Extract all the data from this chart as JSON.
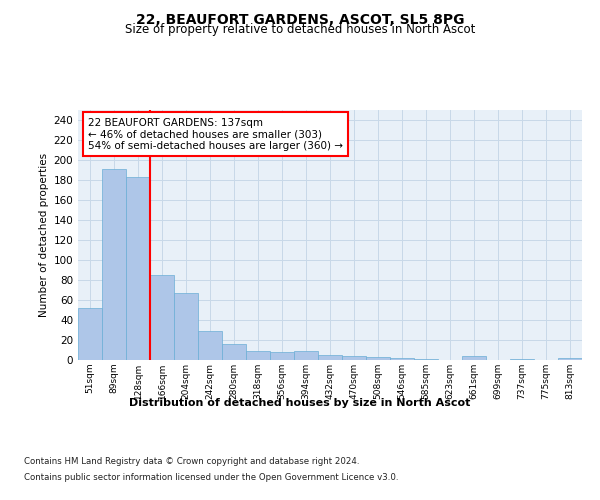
{
  "title": "22, BEAUFORT GARDENS, ASCOT, SL5 8PG",
  "subtitle": "Size of property relative to detached houses in North Ascot",
  "xlabel": "Distribution of detached houses by size in North Ascot",
  "ylabel": "Number of detached properties",
  "footnote1": "Contains HM Land Registry data © Crown copyright and database right 2024.",
  "footnote2": "Contains public sector information licensed under the Open Government Licence v3.0.",
  "bin_labels": [
    "51sqm",
    "89sqm",
    "128sqm",
    "166sqm",
    "204sqm",
    "242sqm",
    "280sqm",
    "318sqm",
    "356sqm",
    "394sqm",
    "432sqm",
    "470sqm",
    "508sqm",
    "546sqm",
    "585sqm",
    "623sqm",
    "661sqm",
    "699sqm",
    "737sqm",
    "775sqm",
    "813sqm"
  ],
  "bar_values": [
    52,
    191,
    183,
    85,
    67,
    29,
    16,
    9,
    8,
    9,
    5,
    4,
    3,
    2,
    1,
    0,
    4,
    0,
    1,
    0,
    2
  ],
  "bar_color": "#aec6e8",
  "bar_edgecolor": "#6aaed6",
  "red_line_x": 2.5,
  "ylim": [
    0,
    250
  ],
  "yticks": [
    0,
    20,
    40,
    60,
    80,
    100,
    120,
    140,
    160,
    180,
    200,
    220,
    240
  ],
  "annotation_text": "22 BEAUFORT GARDENS: 137sqm\n← 46% of detached houses are smaller (303)\n54% of semi-detached houses are larger (360) →",
  "annotation_box_color": "white",
  "annotation_box_edgecolor": "red",
  "grid_color": "#c8d8e8",
  "background_color": "#e8f0f8",
  "fig_background": "white"
}
